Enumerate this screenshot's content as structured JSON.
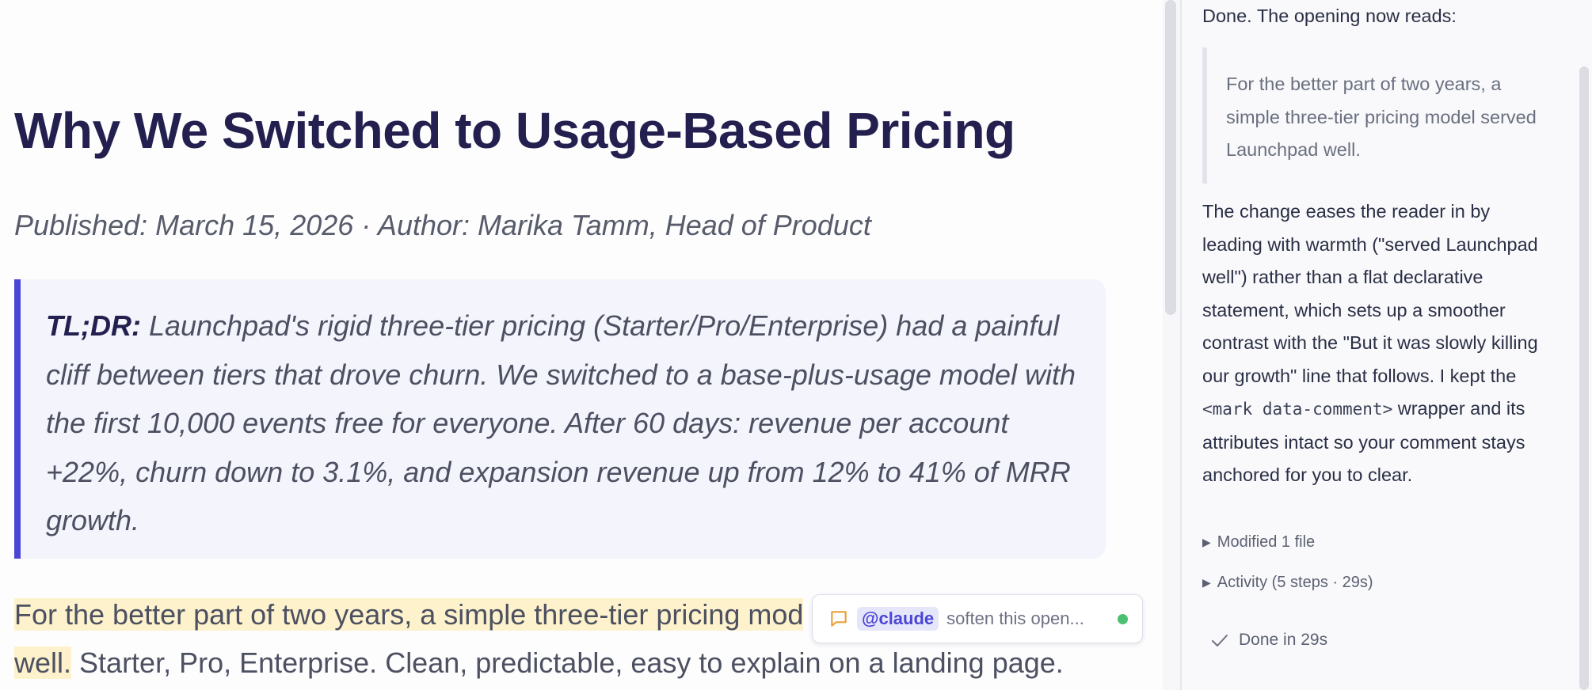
{
  "document": {
    "title": "Why We Switched to Usage-Based Pricing",
    "meta": "Published: March 15, 2026 · Author: Marika Tamm, Head of Product",
    "tldr": {
      "label": "TL;DR:",
      "text": " Launchpad's rigid three-tier pricing (Starter/Pro/Enterprise) had a painful cliff between tiers that drove churn. We switched to a base-plus-usage model with the first 10,000 events free for everyone. After 60 days: revenue per account +22%, churn down to 3.1%, and expansion revenue up from 12% to 41% of MRR growth."
    },
    "paragraph": {
      "highlight_line1": "For the better part of two years, a simple three-tier pricing mod",
      "highlight_line2": "well.",
      "rest": " Starter, Pro, Enterprise. Clean, predictable, easy to explain on a landing page."
    }
  },
  "comment_pill": {
    "icon": "comment-icon",
    "mention": "@claude",
    "text": "soften this open...",
    "status_color": "#4cc070"
  },
  "chat": {
    "intro": "Done. The opening now reads:",
    "quote": "For the better part of two years, a simple three-tier pricing model served Launchpad well.",
    "body_part1": "The change eases the reader in by leading with warmth (\"served Launchpad well\") rather than a flat declarative statement, which sets up a smoother contrast with the \"But it was slowly killing our growth\" line that follows. I kept the ",
    "body_code": "<mark data-comment>",
    "body_part2": " wrapper and its attributes intact so your comment stays anchored for you to clear.",
    "modified_files": "Modified 1 file",
    "activity": "Activity (5 steps · 29s)",
    "done": "Done in 29s"
  },
  "colors": {
    "accent": "#4b45d6",
    "highlight": "#fdf2cc",
    "title": "#23204f"
  }
}
